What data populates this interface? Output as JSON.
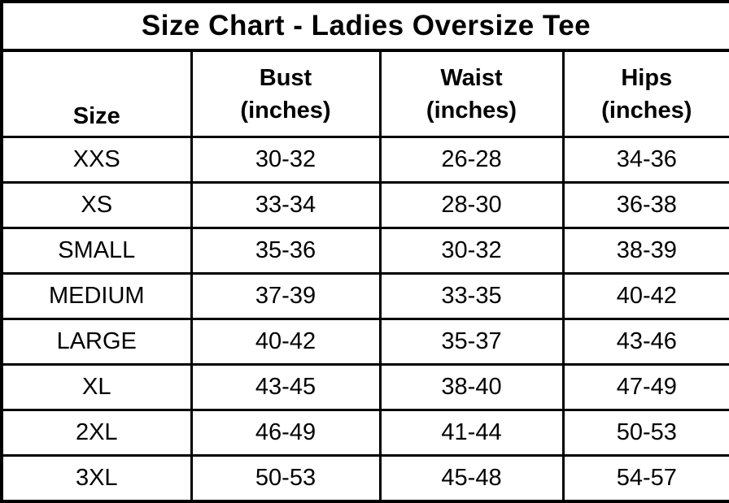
{
  "colors": {
    "background": "#ffffff",
    "text": "#000000",
    "border": "#000000"
  },
  "chart_data": {
    "type": "table",
    "title": "Size Chart - Ladies Oversize Tee",
    "columns": [
      "Size",
      "Bust (inches)",
      "Waist (inches)",
      "Hips (inches)"
    ],
    "header": {
      "size_label": "Size",
      "bust_label": "Bust",
      "bust_sub": "(inches)",
      "waist_label": "Waist",
      "waist_sub": "(inches)",
      "hips_label": "Hips",
      "hips_sub": "(inches)"
    },
    "rows": [
      [
        "XXS",
        "30-32",
        "26-28",
        "34-36"
      ],
      [
        "XS",
        "33-34",
        "28-30",
        "36-38"
      ],
      [
        "SMALL",
        "35-36",
        "30-32",
        "38-39"
      ],
      [
        "MEDIUM",
        "37-39",
        "33-35",
        "40-42"
      ],
      [
        "LARGE",
        "40-42",
        "35-37",
        "43-46"
      ],
      [
        "XL",
        "43-45",
        "38-40",
        "47-49"
      ],
      [
        "2XL",
        "46-49",
        "41-44",
        "50-53"
      ],
      [
        "3XL",
        "50-53",
        "45-48",
        "54-57"
      ]
    ]
  }
}
